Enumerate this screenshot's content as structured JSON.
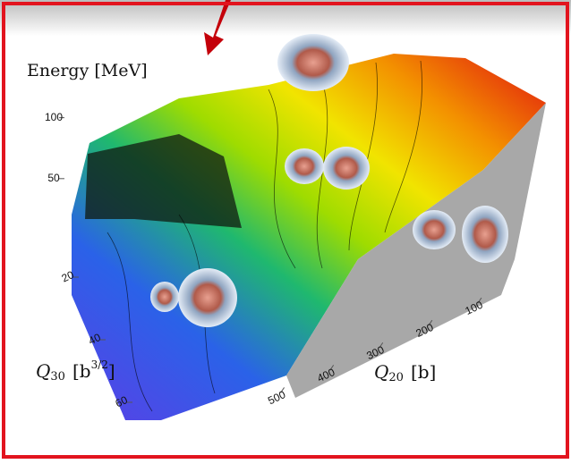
{
  "chart_data": {
    "type": "surface",
    "zlabel": "Energy [MeV]",
    "xlabel": {
      "symbol": "Q",
      "sub": "30",
      "unit": "[b",
      "sup": "3/2",
      "close": "]"
    },
    "ylabel": {
      "symbol": "Q",
      "sub": "20",
      "unit": "[b]"
    },
    "zlim": [
      0,
      110
    ],
    "zticks": [
      50,
      100
    ],
    "xlim": [
      0,
      60
    ],
    "xticks": [
      20,
      40,
      60
    ],
    "ylim": [
      0,
      550
    ],
    "yticks": [
      100,
      200,
      300,
      400,
      500
    ]
  }
}
